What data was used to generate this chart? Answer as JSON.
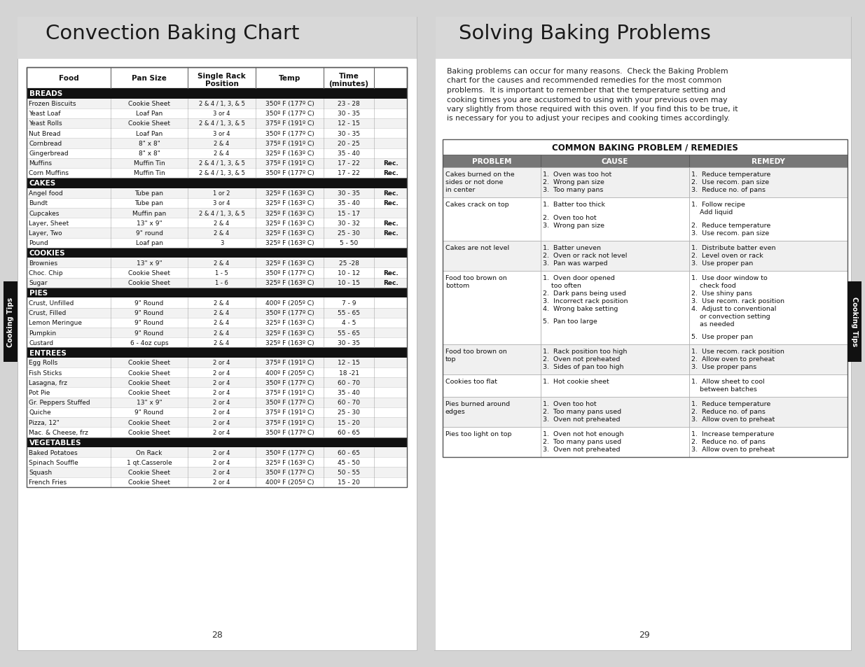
{
  "title_left": "Convection Baking Chart",
  "title_right": "Solving Baking Problems",
  "bg_color": "#d4d4d4",
  "baking_sections": [
    {
      "section": "BREADS",
      "rows": [
        [
          "Frozen Biscuits",
          "Cookie Sheet",
          "2 & 4 / 1, 3, & 5",
          "350º F (177º C)",
          "23 - 28",
          ""
        ],
        [
          "Yeast Loaf",
          "Loaf Pan",
          "3 or 4",
          "350º F (177º C)",
          "30 - 35",
          ""
        ],
        [
          "Yeast Rolls",
          "Cookie Sheet",
          "2 & 4 / 1, 3, & 5",
          "375º F (191º C)",
          "12 - 15",
          ""
        ],
        [
          "Nut Bread",
          "Loaf Pan",
          "3 or 4",
          "350º F (177º C)",
          "30 - 35",
          ""
        ],
        [
          "Cornbread",
          "8\" x 8\"",
          "2 & 4",
          "375º F (191º C)",
          "20 - 25",
          ""
        ],
        [
          "Gingerbread",
          "8\" x 8\"",
          "2 & 4",
          "325º F (163º C)",
          "35 - 40",
          ""
        ],
        [
          "Muffins",
          "Muffin Tin",
          "2 & 4 / 1, 3, & 5",
          "375º F (191º C)",
          "17 - 22",
          "Rec."
        ],
        [
          "Corn Muffins",
          "Muffin Tin",
          "2 & 4 / 1, 3, & 5",
          "350º F (177º C)",
          "17 - 22",
          "Rec."
        ]
      ]
    },
    {
      "section": "CAKES",
      "rows": [
        [
          "Angel food",
          "Tube pan",
          "1 or 2",
          "325º F (163º C)",
          "30 - 35",
          "Rec."
        ],
        [
          "Bundt",
          "Tube pan",
          "3 or 4",
          "325º F (163º C)",
          "35 - 40",
          "Rec."
        ],
        [
          "Cupcakes",
          "Muffin pan",
          "2 & 4 / 1, 3, & 5",
          "325º F (163º C)",
          "15 - 17",
          ""
        ],
        [
          "Layer, Sheet",
          "13\" x 9\"",
          "2 & 4",
          "325º F (163º C)",
          "30 - 32",
          "Rec."
        ],
        [
          "Layer, Two",
          "9\" round",
          "2 & 4",
          "325º F (163º C)",
          "25 - 30",
          "Rec."
        ],
        [
          "Pound",
          "Loaf pan",
          "3",
          "325º F (163º C)",
          "5 - 50",
          ""
        ]
      ]
    },
    {
      "section": "COOKIES",
      "rows": [
        [
          "Brownies",
          "13\" x 9\"",
          "2 & 4",
          "325º F (163º C)",
          "25 -28",
          ""
        ],
        [
          "Choc. Chip",
          "Cookie Sheet",
          "1 - 5",
          "350º F (177º C)",
          "10 - 12",
          "Rec."
        ],
        [
          "Sugar",
          "Cookie Sheet",
          "1 - 6",
          "325º F (163º C)",
          "10 - 15",
          "Rec."
        ]
      ]
    },
    {
      "section": "PIES",
      "rows": [
        [
          "Crust, Unfilled",
          "9\" Round",
          "2 & 4",
          "400º F (205º C)",
          "7 - 9",
          ""
        ],
        [
          "Crust, Filled",
          "9\" Round",
          "2 & 4",
          "350º F (177º C)",
          "55 - 65",
          ""
        ],
        [
          "Lemon Meringue",
          "9\" Round",
          "2 & 4",
          "325º F (163º C)",
          "4 - 5",
          ""
        ],
        [
          "Pumpkin",
          "9\" Round",
          "2 & 4",
          "325º F (163º C)",
          "55 - 65",
          ""
        ],
        [
          "Custard",
          "6 - 4oz cups",
          "2 & 4",
          "325º F (163º C)",
          "30 - 35",
          ""
        ]
      ]
    },
    {
      "section": "ENTREES",
      "rows": [
        [
          "Egg Rolls",
          "Cookie Sheet",
          "2 or 4",
          "375º F (191º C)",
          "12 - 15",
          ""
        ],
        [
          "Fish Sticks",
          "Cookie Sheet",
          "2 or 4",
          "400º F (205º C)",
          "18 -21",
          ""
        ],
        [
          "Lasagna, frz",
          "Cookie Sheet",
          "2 or 4",
          "350º F (177º C)",
          "60 - 70",
          ""
        ],
        [
          "Pot Pie",
          "Cookie Sheet",
          "2 or 4",
          "375º F (191º C)",
          "35 - 40",
          ""
        ],
        [
          "Gr. Peppers Stuffed",
          "13\" x 9\"",
          "2 or 4",
          "350º F (177º C)",
          "60 - 70",
          ""
        ],
        [
          "Quiche",
          "9\" Round",
          "2 or 4",
          "375º F (191º C)",
          "25 - 30",
          ""
        ],
        [
          "Pizza, 12\"",
          "Cookie Sheet",
          "2 or 4",
          "375º F (191º C)",
          "15 - 20",
          ""
        ],
        [
          "Mac. & Cheese, frz",
          "Cookie Sheet",
          "2 or 4",
          "350º F (177º C)",
          "60 - 65",
          ""
        ]
      ]
    },
    {
      "section": "VEGETABLES",
      "rows": [
        [
          "Baked Potatoes",
          "On Rack",
          "2 or 4",
          "350º F (177º C)",
          "60 - 65",
          ""
        ],
        [
          "Spinach Souffle",
          "1 qt.Casserole",
          "2 or 4",
          "325º F (163º C)",
          "45 - 50",
          ""
        ],
        [
          "Squash",
          "Cookie Sheet",
          "2 or 4",
          "350º F (177º C)",
          "50 - 55",
          ""
        ],
        [
          "French Fries",
          "Cookie Sheet",
          "2 or 4",
          "400º F (205º C)",
          "15 - 20",
          ""
        ]
      ]
    }
  ],
  "solving_intro_lines": [
    "Baking problems can occur for many reasons.  Check the Baking Problem",
    "chart for the causes and recommended remedies for the most common",
    "problems.  It is important to remember that the temperature setting and",
    "cooking times you are accustomed to using with your previous oven may",
    "vary slightly from those required with this oven. If you find this to be true, it",
    "is necessary for you to adjust your recipes and cooking times accordingly."
  ],
  "common_title": "COMMON BAKING PROBLEM / REMEDIES",
  "common_headers": [
    "PROBLEM",
    "CAUSE",
    "REMEDY"
  ],
  "problem_rows": [
    {
      "problem": "Cakes burned on the\nsides or not done\nin center",
      "causes": [
        "1.  Oven was too hot",
        "2.  Wrong pan size",
        "3.  Too many pans"
      ],
      "remedies": [
        "1.  Reduce temperature",
        "2.  Use recom. pan size",
        "3.  Reduce no. of pans"
      ]
    },
    {
      "problem": "Cakes crack on top",
      "causes": [
        "1.  Batter too thick",
        "",
        "2.  Oven too hot",
        "3.  Wrong pan size"
      ],
      "remedies": [
        "1.  Follow recipe\n    Add liquid",
        "",
        "2.  Reduce temperature",
        "3.  Use recom. pan size"
      ]
    },
    {
      "problem": "Cakes are not level",
      "causes": [
        "1.  Batter uneven",
        "2.  Oven or rack not level",
        "3.  Pan was warped"
      ],
      "remedies": [
        "1.  Distribute batter even",
        "2.  Level oven or rack",
        "3.  Use proper pan"
      ]
    },
    {
      "problem": "Food too brown on\nbottom",
      "causes": [
        "1.  Oven door opened\n    too often",
        "2.  Dark pans being used",
        "3.  Incorrect rack position",
        "4.  Wrong bake setting",
        "",
        "5.  Pan too large"
      ],
      "remedies": [
        "1.  Use door window to\n    check food",
        "2.  Use shiny pans",
        "3.  Use recom. rack position",
        "4.  Adjust to conventional\n    or convection setting\n    as needed",
        "",
        "5.  Use proper pan"
      ]
    },
    {
      "problem": "Food too brown on\ntop",
      "causes": [
        "1.  Rack position too high",
        "2.  Oven not preheated",
        "3.  Sides of pan too high"
      ],
      "remedies": [
        "1.  Use recom. rack position",
        "2.  Allow oven to preheat",
        "3.  Use proper pans"
      ]
    },
    {
      "problem": "Cookies too flat",
      "causes": [
        "1.  Hot cookie sheet"
      ],
      "remedies": [
        "1.  Allow sheet to cool\n    between batches"
      ]
    },
    {
      "problem": "Pies burned around\nedges",
      "causes": [
        "1.  Oven too hot",
        "2.  Too many pans used",
        "3.  Oven not preheated"
      ],
      "remedies": [
        "1.  Reduce temperature",
        "2.  Reduce no. of pans",
        "3.  Allow oven to preheat"
      ]
    },
    {
      "problem": "Pies too light on top",
      "causes": [
        "1.  Oven not hot enough",
        "2.  Too many pans used",
        "3.  Oven not preheated"
      ],
      "remedies": [
        "1.  Increase temperature",
        "2.  Reduce no. of pans",
        "3.  Allow oven to preheat"
      ]
    }
  ],
  "page_numbers": [
    "28",
    "29"
  ],
  "side_tab_text": "Cooking Tips"
}
